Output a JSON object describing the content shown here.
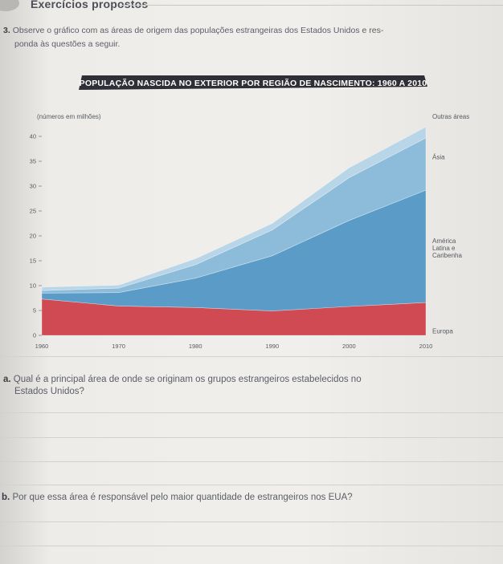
{
  "header": {
    "title": "Exercícios propostos"
  },
  "exercise": {
    "number": "3.",
    "intro_line1": "Observe o gráfico com as áreas de origem das populações estrangeiras dos Estados Unidos e res-",
    "intro_line2": "ponda às questões a seguir."
  },
  "chart_data": {
    "type": "area",
    "title": "POPULAÇÃO NASCIDA NO EXTERIOR POR REGIÃO DE NASCIMENTO: 1960 A 2010",
    "ylabel": "(números em milhões)",
    "xlabel": "",
    "x": [
      1960,
      1970,
      1980,
      1990,
      2000,
      2010
    ],
    "ylim": [
      0,
      40
    ],
    "xlim": [
      1960,
      2010
    ],
    "yticks": [
      0,
      5,
      10,
      15,
      20,
      25,
      30,
      35,
      40
    ],
    "xticks": [
      "1960",
      "1970",
      "1980",
      "1990",
      "2000",
      "2010"
    ],
    "stacked": true,
    "series": [
      {
        "name": "Europa",
        "values": [
          7.3,
          5.9,
          5.6,
          4.9,
          5.8,
          6.6
        ],
        "color": "#cf4a53"
      },
      {
        "name": "América Latina e Caribenha",
        "values": [
          1.2,
          2.7,
          5.9,
          11.1,
          17.3,
          22.6
        ],
        "color": "#5a9bc8"
      },
      {
        "name": "Ásia",
        "values": [
          0.5,
          0.9,
          2.7,
          5.2,
          8.6,
          10.5
        ],
        "color": "#8dbcda"
      },
      {
        "name": "Outras áreas",
        "values": [
          0.7,
          0.6,
          1.2,
          1.3,
          2.0,
          2.2
        ],
        "color": "#b9d6e8"
      }
    ],
    "legend": "right"
  },
  "questions": {
    "a_letter": "a.",
    "a_line1": "Qual é a principal área de onde se originam os grupos estrangeiros estabelecidos no",
    "a_line2": "Estados Unidos?",
    "b_letter": "b.",
    "b_text": "Por que essa área é responsável pelo maior quantidade de estrangeiros nos EUA?"
  }
}
